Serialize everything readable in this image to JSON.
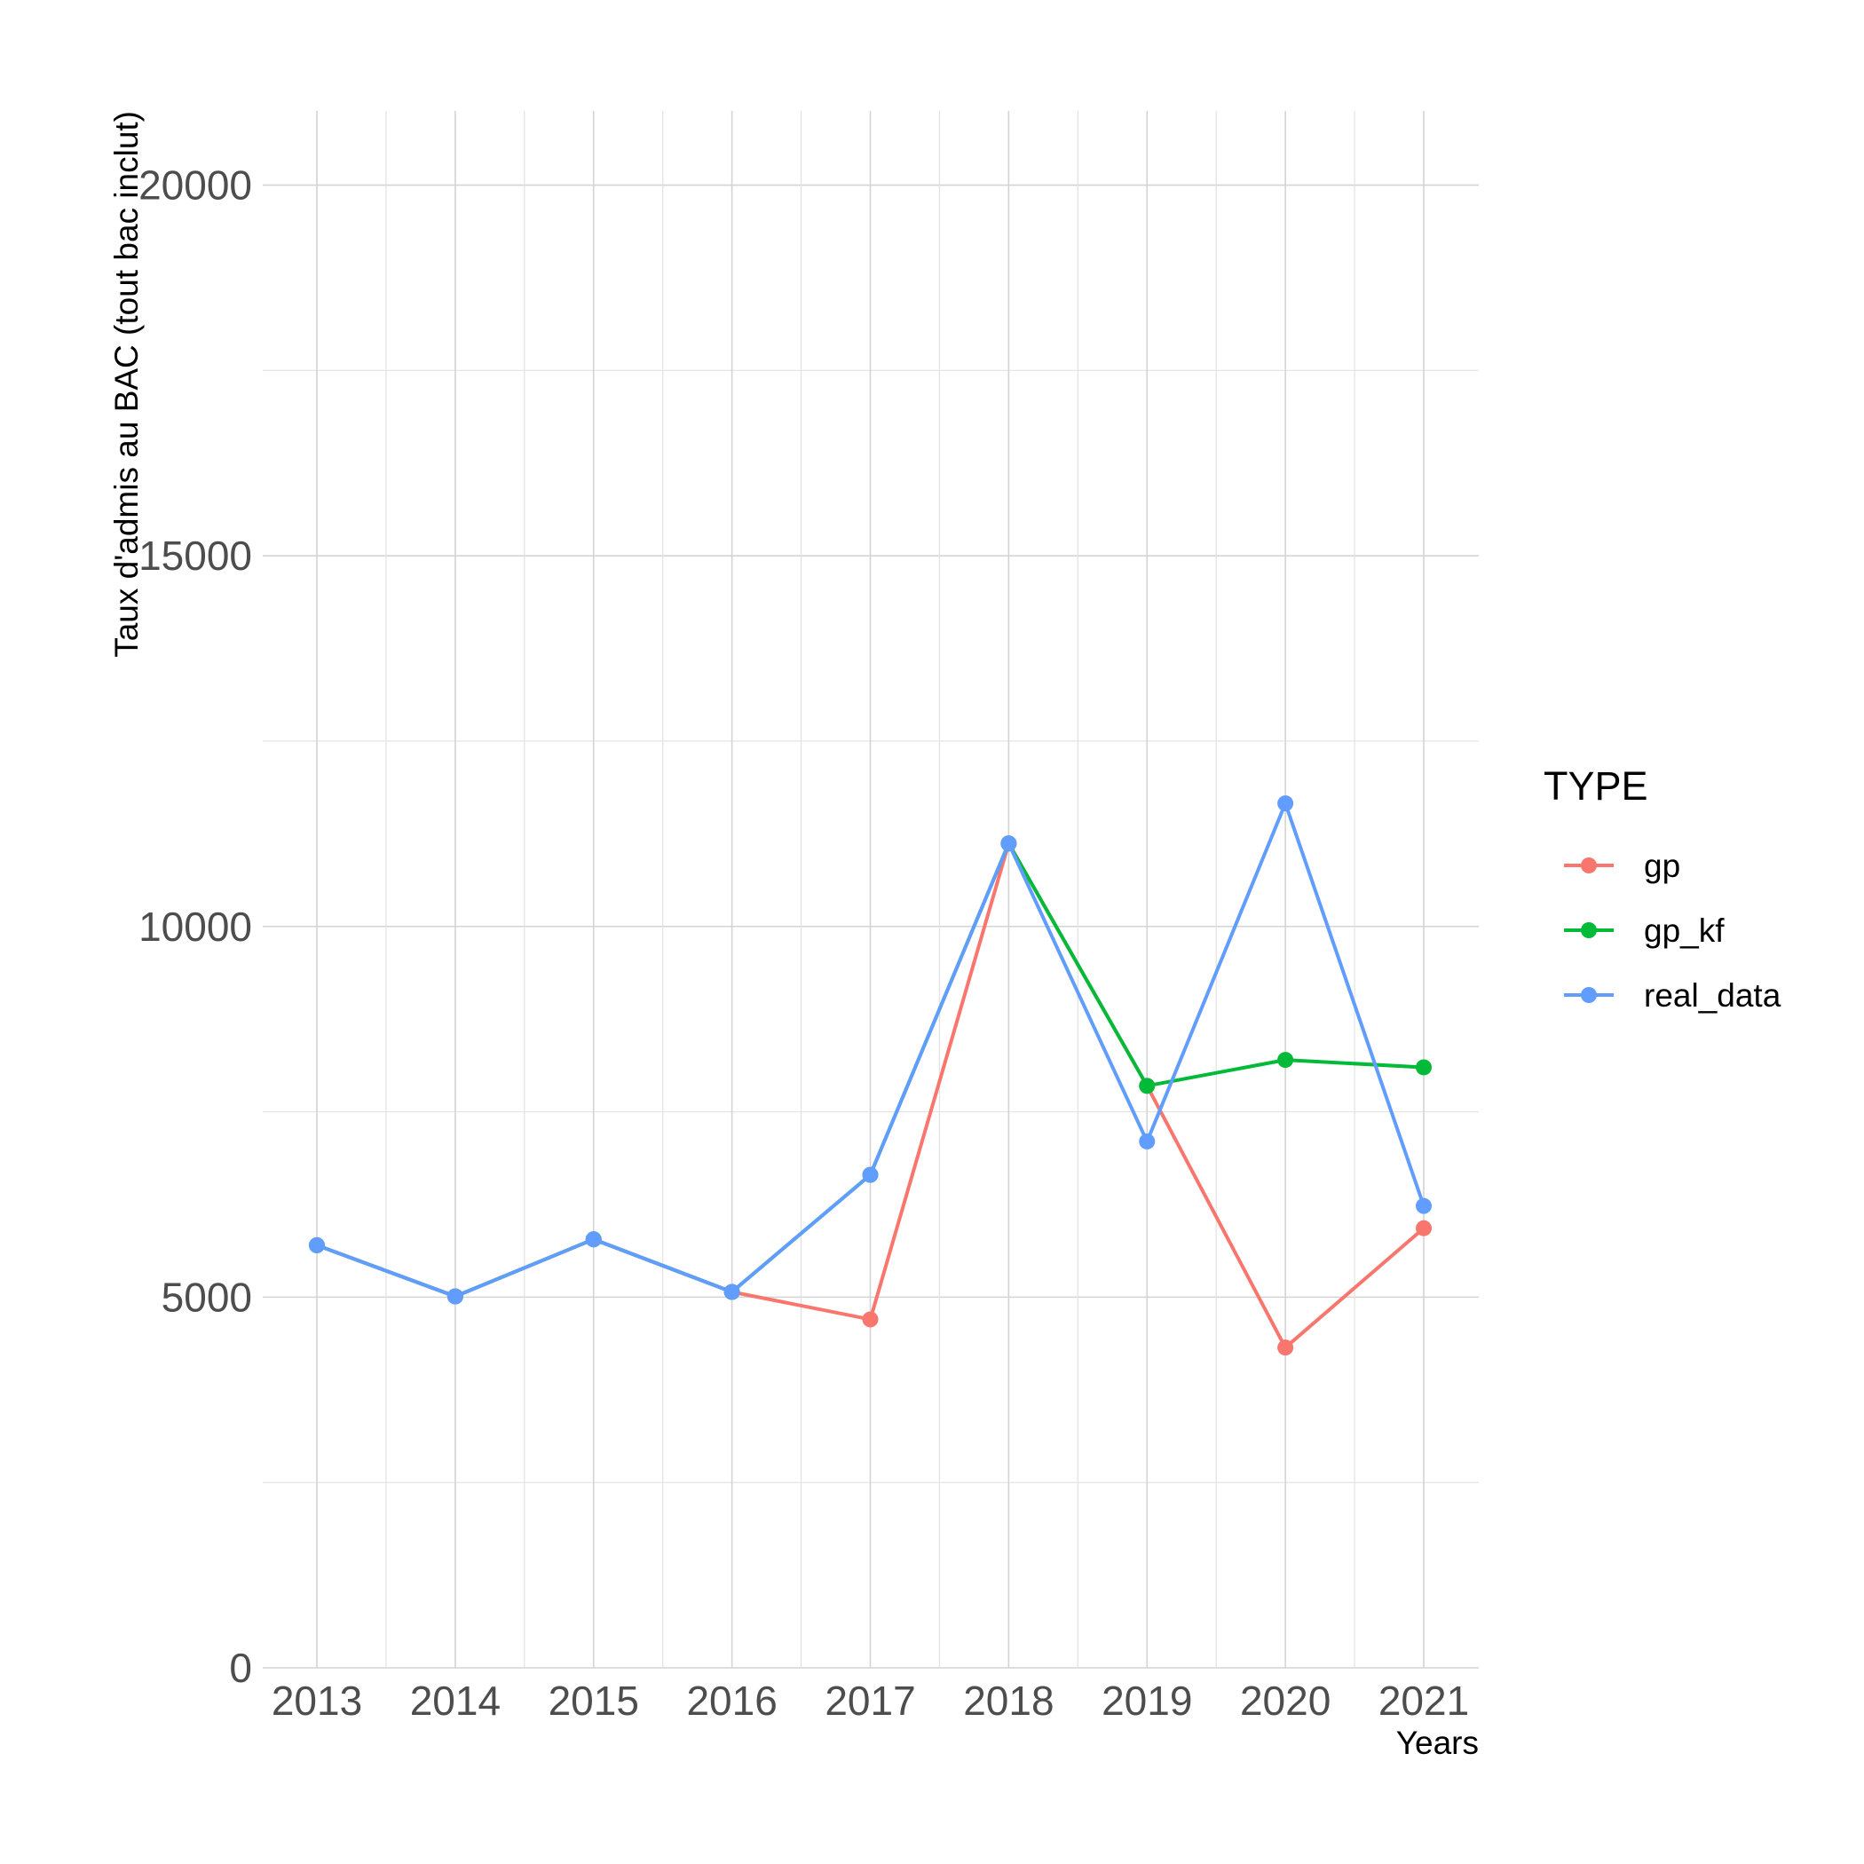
{
  "chart_data": {
    "type": "line",
    "xlabel": "Years",
    "ylabel": "Taux d'admis au BAC (tout bac inclut)",
    "x": [
      2013,
      2014,
      2015,
      2016,
      2017,
      2018,
      2019,
      2020,
      2021
    ],
    "x_tick_labels": [
      "2013",
      "2014",
      "2015",
      "2016",
      "2017",
      "2018",
      "2019",
      "2020",
      "2021"
    ],
    "xlim": [
      2012.6,
      2021.4
    ],
    "ylim": [
      0,
      21000
    ],
    "y_ticks": [
      0,
      5000,
      10000,
      15000,
      20000
    ],
    "y_tick_labels": [
      "0",
      "5000",
      "10000",
      "15000",
      "20000"
    ],
    "grid": true,
    "legend": {
      "title": "TYPE",
      "position": "right"
    },
    "series": [
      {
        "name": "gp",
        "color": "#F8766D",
        "values": [
          5700,
          5010,
          5780,
          5070,
          4700,
          11120,
          7850,
          4320,
          5930
        ]
      },
      {
        "name": "gp_kf",
        "color": "#00BA38",
        "values": [
          5700,
          5010,
          5780,
          5070,
          6650,
          11120,
          7850,
          8200,
          8100
        ]
      },
      {
        "name": "real_data",
        "color": "#619CFF",
        "values": [
          5700,
          5010,
          5780,
          5070,
          6650,
          11120,
          7100,
          11660,
          6230
        ]
      }
    ]
  }
}
